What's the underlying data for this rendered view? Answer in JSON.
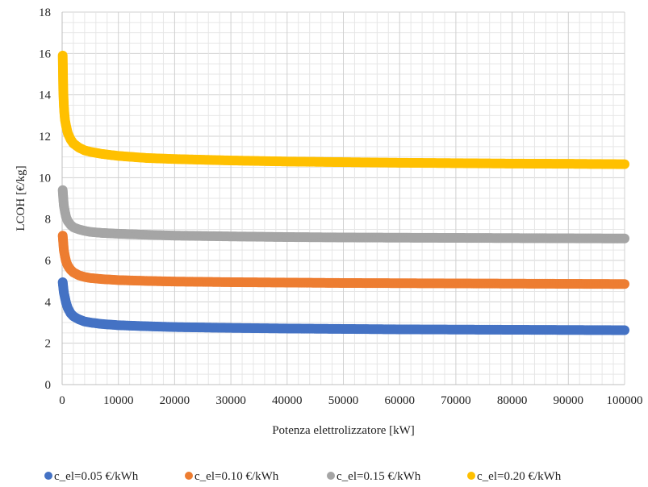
{
  "chart_data": {
    "type": "scatter",
    "xlabel": "Potenza elettrolizzatore [kW]",
    "ylabel": "LCOH [€/kg]",
    "xlim": [
      0,
      100000
    ],
    "ylim": [
      0,
      18
    ],
    "x_ticks": [
      "0",
      "10000",
      "20000",
      "30000",
      "40000",
      "50000",
      "60000",
      "70000",
      "80000",
      "90000",
      "100000"
    ],
    "y_ticks": [
      "0",
      "2",
      "4",
      "6",
      "8",
      "10",
      "12",
      "14",
      "16",
      "18"
    ],
    "grid": true,
    "legend_position": "bottom",
    "series": [
      {
        "name": "c_el=0.05 €/kWh",
        "color": "#4472C4",
        "points": [
          [
            100,
            4.95
          ],
          [
            200,
            4.7
          ],
          [
            300,
            4.45
          ],
          [
            500,
            4.2
          ],
          [
            700,
            3.95
          ],
          [
            1000,
            3.7
          ],
          [
            1500,
            3.45
          ],
          [
            2000,
            3.3
          ],
          [
            3000,
            3.15
          ],
          [
            4000,
            3.05
          ],
          [
            5000,
            3.0
          ],
          [
            7000,
            2.93
          ],
          [
            10000,
            2.87
          ],
          [
            15000,
            2.82
          ],
          [
            20000,
            2.78
          ],
          [
            30000,
            2.74
          ],
          [
            40000,
            2.71
          ],
          [
            50000,
            2.69
          ],
          [
            60000,
            2.67
          ],
          [
            70000,
            2.66
          ],
          [
            80000,
            2.65
          ],
          [
            90000,
            2.64
          ],
          [
            100000,
            2.63
          ]
        ]
      },
      {
        "name": "c_el=0.10 €/kWh",
        "color": "#ED7D31",
        "points": [
          [
            100,
            7.2
          ],
          [
            200,
            6.85
          ],
          [
            300,
            6.5
          ],
          [
            500,
            6.2
          ],
          [
            700,
            5.95
          ],
          [
            1000,
            5.75
          ],
          [
            1500,
            5.55
          ],
          [
            2000,
            5.42
          ],
          [
            3000,
            5.28
          ],
          [
            4000,
            5.2
          ],
          [
            5000,
            5.15
          ],
          [
            7000,
            5.1
          ],
          [
            10000,
            5.05
          ],
          [
            15000,
            5.01
          ],
          [
            20000,
            4.98
          ],
          [
            30000,
            4.95
          ],
          [
            40000,
            4.93
          ],
          [
            50000,
            4.91
          ],
          [
            60000,
            4.9
          ],
          [
            70000,
            4.89
          ],
          [
            80000,
            4.88
          ],
          [
            90000,
            4.87
          ],
          [
            100000,
            4.86
          ]
        ]
      },
      {
        "name": "c_el=0.15 €/kWh",
        "color": "#A5A5A5",
        "points": [
          [
            100,
            9.4
          ],
          [
            200,
            9.0
          ],
          [
            300,
            8.65
          ],
          [
            500,
            8.35
          ],
          [
            700,
            8.1
          ],
          [
            1000,
            7.9
          ],
          [
            1500,
            7.72
          ],
          [
            2000,
            7.6
          ],
          [
            3000,
            7.5
          ],
          [
            4000,
            7.43
          ],
          [
            5000,
            7.38
          ],
          [
            7000,
            7.33
          ],
          [
            10000,
            7.29
          ],
          [
            15000,
            7.24
          ],
          [
            20000,
            7.2
          ],
          [
            30000,
            7.16
          ],
          [
            40000,
            7.13
          ],
          [
            50000,
            7.11
          ],
          [
            60000,
            7.1
          ],
          [
            70000,
            7.09
          ],
          [
            80000,
            7.08
          ],
          [
            90000,
            7.07
          ],
          [
            100000,
            7.06
          ]
        ]
      },
      {
        "name": "c_el=0.20 €/kWh",
        "color": "#FFC000",
        "points": [
          [
            100,
            15.9
          ],
          [
            200,
            14.2
          ],
          [
            300,
            13.5
          ],
          [
            400,
            13.1
          ],
          [
            500,
            12.8
          ],
          [
            700,
            12.5
          ],
          [
            1000,
            12.15
          ],
          [
            1500,
            11.85
          ],
          [
            2000,
            11.65
          ],
          [
            3000,
            11.45
          ],
          [
            4000,
            11.32
          ],
          [
            5000,
            11.25
          ],
          [
            7000,
            11.15
          ],
          [
            10000,
            11.05
          ],
          [
            15000,
            10.95
          ],
          [
            20000,
            10.9
          ],
          [
            30000,
            10.83
          ],
          [
            40000,
            10.78
          ],
          [
            50000,
            10.75
          ],
          [
            60000,
            10.72
          ],
          [
            70000,
            10.7
          ],
          [
            80000,
            10.68
          ],
          [
            90000,
            10.67
          ],
          [
            100000,
            10.65
          ]
        ]
      }
    ]
  }
}
